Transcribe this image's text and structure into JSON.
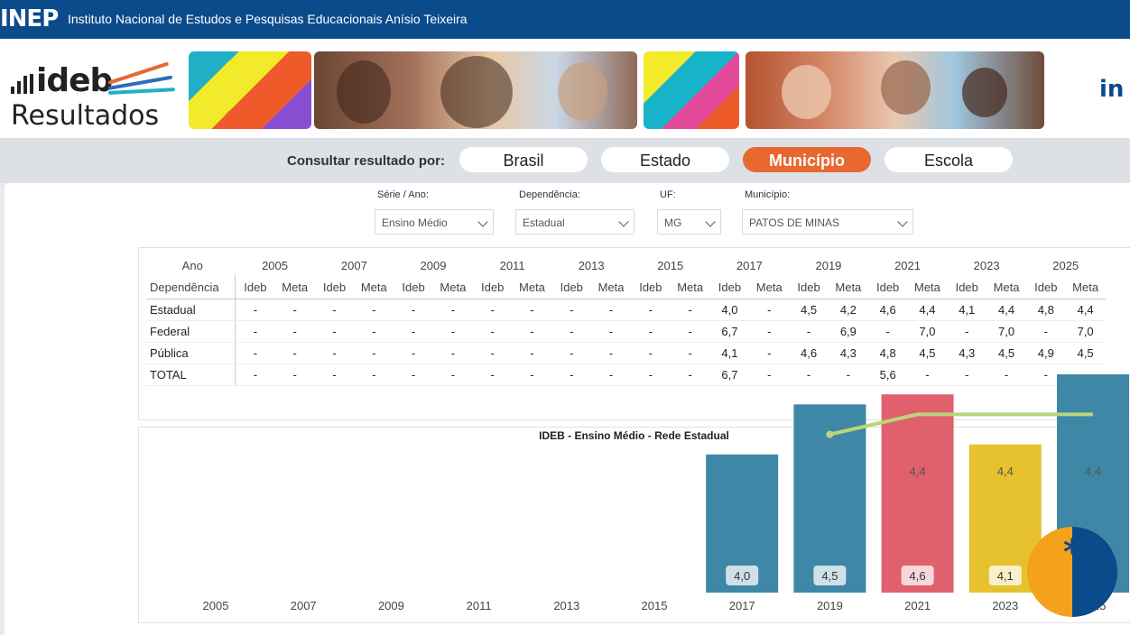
{
  "header": {
    "logo_text": "INEP",
    "org_name": "Instituto Nacional de Estudos e Pesquisas Educacionais Anísio Teixeira"
  },
  "brand": {
    "ideb": "ideb",
    "resultados": "Resultados",
    "corner_logo": "in"
  },
  "query": {
    "label": "Consultar resultado por:",
    "options": [
      "Brasil",
      "Estado",
      "Município",
      "Escola"
    ],
    "active": "Município"
  },
  "filters": {
    "serie": {
      "label": "Série / Ano:",
      "value": "Ensino Médio"
    },
    "dependencia": {
      "label": "Dependência:",
      "value": "Estadual"
    },
    "uf": {
      "label": "UF:",
      "value": "MG"
    },
    "municipio": {
      "label": "Município:",
      "value": "PATOS DE MINAS"
    }
  },
  "table": {
    "year_header": "Ano",
    "dep_header": "Dependência",
    "ideb_label": "Ideb",
    "meta_label": "Meta",
    "years": [
      "2005",
      "2007",
      "2009",
      "2011",
      "2013",
      "2015",
      "2017",
      "2019",
      "2021",
      "2023",
      "2025"
    ],
    "rows": [
      {
        "name": "Estadual",
        "values": [
          "-",
          "-",
          "-",
          "-",
          "-",
          "-",
          "-",
          "-",
          "-",
          "-",
          "-",
          "-",
          "4,0",
          "-",
          "4,5",
          "4,2",
          "4,6",
          "4,4",
          "4,1",
          "4,4",
          "4,8",
          "4,4"
        ]
      },
      {
        "name": "Federal",
        "values": [
          "-",
          "-",
          "-",
          "-",
          "-",
          "-",
          "-",
          "-",
          "-",
          "-",
          "-",
          "-",
          "6,7",
          "-",
          "-",
          "6,9",
          "-",
          "7,0",
          "-",
          "7,0",
          "-",
          "7,0"
        ]
      },
      {
        "name": "Pública",
        "values": [
          "-",
          "-",
          "-",
          "-",
          "-",
          "-",
          "-",
          "-",
          "-",
          "-",
          "-",
          "-",
          "4,1",
          "-",
          "4,6",
          "4,3",
          "4,8",
          "4,5",
          "4,3",
          "4,5",
          "4,9",
          "4,5"
        ]
      },
      {
        "name": "TOTAL",
        "values": [
          "-",
          "-",
          "-",
          "-",
          "-",
          "-",
          "-",
          "-",
          "-",
          "-",
          "-",
          "-",
          "6,7",
          "-",
          "-",
          "-",
          "5,6",
          "-",
          "-",
          "-",
          "-",
          "-"
        ]
      }
    ]
  },
  "chart_data": {
    "type": "bar",
    "title": "IDEB - Ensino Médio - Rede Estadual",
    "categories": [
      "2005",
      "2007",
      "2009",
      "2011",
      "2013",
      "2015",
      "2017",
      "2019",
      "2021",
      "2023",
      "2025"
    ],
    "series": [
      {
        "type": "bar",
        "values": [
          null,
          null,
          null,
          null,
          null,
          null,
          4.0,
          4.5,
          4.6,
          4.1,
          4.8
        ],
        "labels": [
          "",
          "",
          "",
          "",
          "",
          "",
          "4,0",
          "4,5",
          "4,6",
          "4,1",
          ""
        ],
        "colors": [
          "#3f87a6",
          "#3f87a6",
          "#3f87a6",
          "#3f87a6",
          "#3f87a6",
          "#3f87a6",
          "#3f87a6",
          "#3f87a6",
          "#e0606e",
          "#e6c22e",
          "#3f87a6"
        ]
      },
      {
        "type": "line",
        "values": [
          null,
          null,
          null,
          null,
          null,
          null,
          null,
          4.2,
          4.4,
          4.4,
          4.4
        ],
        "labels": [
          "",
          "",
          "",
          "",
          "",
          "",
          "",
          "",
          "4,4",
          "4,4",
          "4,4"
        ],
        "color": "#b8d67a"
      }
    ],
    "ylim": [
      0,
      5
    ]
  }
}
